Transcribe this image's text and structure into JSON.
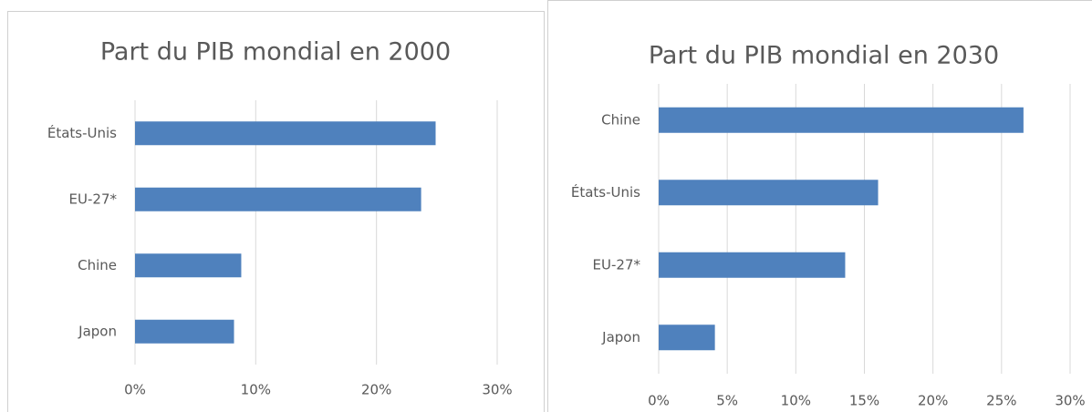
{
  "chart_data": [
    {
      "type": "bar",
      "orientation": "horizontal",
      "title": "Part du PIB mondial en 2000",
      "categories": [
        "États-Unis",
        "EU-27*",
        "Chine",
        "Japon"
      ],
      "values": [
        24.9,
        23.7,
        8.8,
        8.2
      ],
      "color": "#4f81bd",
      "xlim": [
        0,
        30
      ],
      "xticks": [
        {
          "value": 0,
          "label": "0%"
        },
        {
          "value": 10,
          "label": "10%"
        },
        {
          "value": 20,
          "label": "20%"
        },
        {
          "value": 30,
          "label": "30%"
        }
      ],
      "grid": true
    },
    {
      "type": "bar",
      "orientation": "horizontal",
      "title": "Part du PIB mondial en 2030",
      "categories": [
        "Chine",
        "États-Unis",
        "EU-27*",
        "Japon"
      ],
      "values": [
        26.6,
        16.0,
        13.6,
        4.1
      ],
      "color": "#4f81bd",
      "xlim": [
        0,
        30
      ],
      "xticks": [
        {
          "value": 0,
          "label": "0%"
        },
        {
          "value": 5,
          "label": "5%"
        },
        {
          "value": 10,
          "label": "10%"
        },
        {
          "value": 15,
          "label": "15%"
        },
        {
          "value": 20,
          "label": "20%"
        },
        {
          "value": 25,
          "label": "25%"
        },
        {
          "value": 30,
          "label": "30%"
        }
      ],
      "grid": true
    }
  ]
}
